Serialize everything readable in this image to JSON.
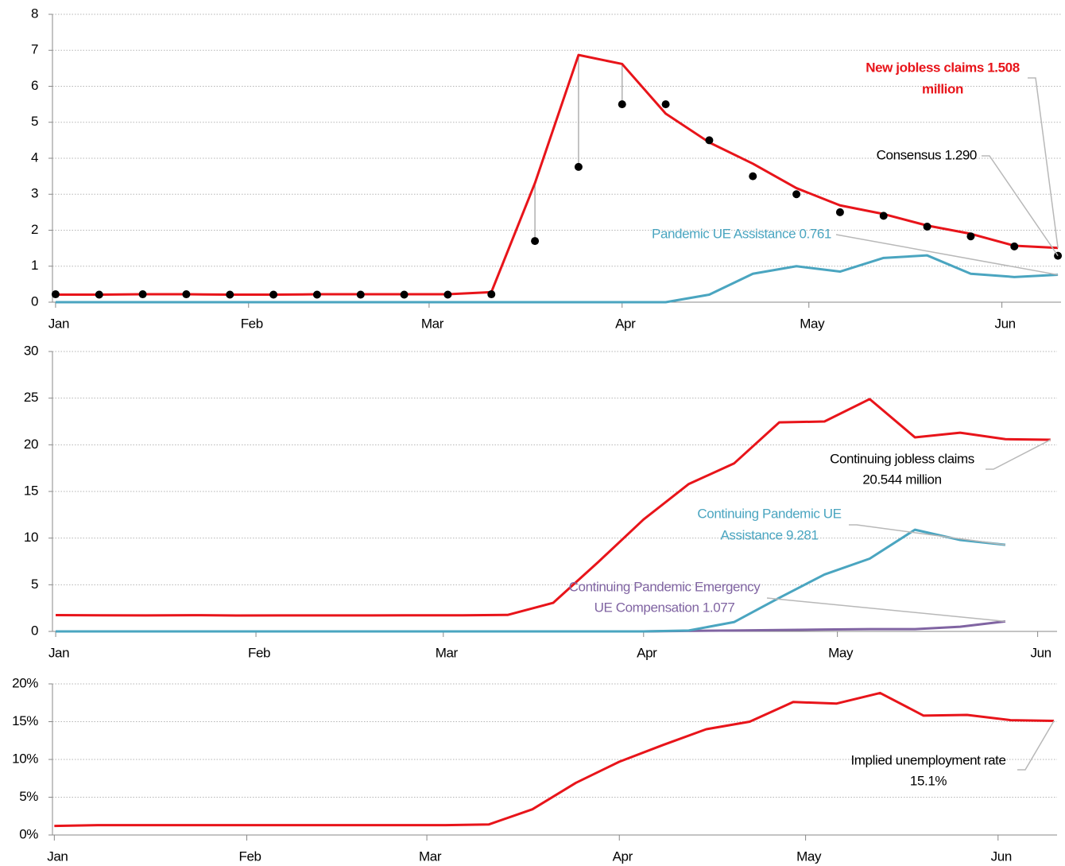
{
  "chart_data": [
    {
      "type": "line",
      "x": [
        0,
        7,
        14,
        21,
        28,
        35,
        42,
        49,
        56,
        63,
        70,
        77,
        84,
        91,
        98,
        105,
        112,
        119,
        126,
        133,
        140,
        147,
        154,
        161
      ],
      "xlim": [
        -0.5,
        161.5
      ],
      "xticks": [
        {
          "value": 0,
          "label": "Jan"
        },
        {
          "value": 31,
          "label": "Feb"
        },
        {
          "value": 60,
          "label": "Mar"
        },
        {
          "value": 91,
          "label": "Apr"
        },
        {
          "value": 121,
          "label": "May"
        },
        {
          "value": 152,
          "label": "Jun"
        }
      ],
      "ylim": [
        0,
        8
      ],
      "yticks": [
        0,
        1,
        2,
        3,
        4,
        5,
        6,
        7,
        8
      ],
      "grid": true,
      "series": [
        {
          "name": "New jobless claims",
          "type": "line",
          "color": "#e8141a",
          "values": [
            0.21,
            0.21,
            0.22,
            0.22,
            0.21,
            0.21,
            0.22,
            0.22,
            0.22,
            0.22,
            0.28,
            3.31,
            6.87,
            6.62,
            5.24,
            4.44,
            3.85,
            3.17,
            2.69,
            2.45,
            2.13,
            1.9,
            1.57,
            1.508
          ]
        },
        {
          "name": "Consensus",
          "type": "scatter",
          "color": "#000000",
          "values": [
            0.22,
            0.21,
            0.22,
            0.22,
            0.21,
            0.21,
            0.21,
            0.21,
            0.21,
            0.21,
            0.22,
            1.7,
            3.76,
            5.5,
            5.5,
            4.5,
            3.5,
            3.0,
            2.5,
            2.4,
            2.1,
            1.83,
            1.55,
            1.29
          ]
        },
        {
          "name": "Pandemic UE Assistance",
          "type": "line",
          "color": "#4aa5c0",
          "values": [
            0,
            0,
            0,
            0,
            0,
            0,
            0,
            0,
            0,
            0,
            0,
            0,
            0,
            0,
            0,
            0.21,
            0.79,
            1.0,
            0.85,
            1.23,
            1.3,
            0.79,
            0.7,
            0.761
          ]
        }
      ],
      "annotations": [
        {
          "lines": [
            "New jobless claims 1.508",
            "million"
          ],
          "color": "#e8141a",
          "bold": true
        },
        {
          "lines": [
            "Consensus 1.290"
          ],
          "color": "#000000"
        },
        {
          "lines": [
            "Pandemic UE Assistance 0.761"
          ],
          "color": "#4aa5c0"
        }
      ]
    },
    {
      "type": "line",
      "x": [
        0,
        7,
        14,
        21,
        28,
        35,
        42,
        49,
        56,
        63,
        70,
        77,
        84,
        91,
        98,
        105,
        112,
        119,
        126,
        133,
        140,
        147,
        154
      ],
      "xlim": [
        -0.5,
        155
      ],
      "xticks": [
        {
          "value": 0,
          "label": "Jan"
        },
        {
          "value": 31,
          "label": "Feb"
        },
        {
          "value": 60,
          "label": "Mar"
        },
        {
          "value": 91,
          "label": "Apr"
        },
        {
          "value": 121,
          "label": "May"
        },
        {
          "value": 152,
          "label": "Jun"
        }
      ],
      "ylim": [
        0,
        30
      ],
      "yticks": [
        0,
        5,
        10,
        15,
        20,
        25,
        30
      ],
      "grid": true,
      "series": [
        {
          "name": "Continuing jobless claims",
          "type": "line",
          "color": "#e8141a",
          "values": [
            1.75,
            1.73,
            1.72,
            1.74,
            1.71,
            1.72,
            1.72,
            1.72,
            1.73,
            1.73,
            1.77,
            3.06,
            7.45,
            12.0,
            15.8,
            18.0,
            22.4,
            22.5,
            24.9,
            20.8,
            21.3,
            20.6,
            20.544
          ]
        },
        {
          "name": "Continuing Pandemic UE Assistance",
          "type": "line",
          "color": "#4aa5c0",
          "values": [
            0,
            0,
            0,
            0,
            0,
            0,
            0,
            0,
            0,
            0,
            0,
            0,
            0,
            0,
            0.1,
            1.0,
            3.6,
            6.1,
            7.8,
            10.9,
            9.8,
            9.281,
            null
          ]
        },
        {
          "name": "Continuing Pandemic Emergency UE Compensation",
          "type": "line",
          "color": "#8064a2",
          "values": [
            0,
            0,
            0,
            0,
            0,
            0,
            0,
            0,
            0,
            0,
            0,
            0,
            0,
            0,
            0.05,
            0.1,
            0.15,
            0.2,
            0.25,
            0.25,
            0.5,
            1.077,
            null
          ]
        }
      ],
      "annotations": [
        {
          "lines": [
            "Continuing jobless claims",
            "20.544 million"
          ],
          "color": "#000000"
        },
        {
          "lines": [
            "Continuing Pandemic UE",
            "Assistance 9.281"
          ],
          "color": "#4aa5c0"
        },
        {
          "lines": [
            "Continuing Pandemic Emergency",
            "UE Compensation 1.077"
          ],
          "color": "#8064a2"
        }
      ]
    },
    {
      "type": "line",
      "x": [
        0,
        7,
        14,
        21,
        28,
        35,
        42,
        49,
        56,
        63,
        70,
        77,
        84,
        91,
        98,
        105,
        112,
        119,
        126,
        133,
        140,
        147,
        154,
        161
      ],
      "xlim": [
        -0.3,
        161.5
      ],
      "xticks": [
        {
          "value": 0,
          "label": "Jan"
        },
        {
          "value": 31,
          "label": "Feb"
        },
        {
          "value": 60,
          "label": "Mar"
        },
        {
          "value": 91,
          "label": "Apr"
        },
        {
          "value": 121,
          "label": "May"
        },
        {
          "value": 152,
          "label": "Jun"
        }
      ],
      "ylim": [
        0,
        20
      ],
      "yticks": [
        {
          "value": 0,
          "label": "0%"
        },
        {
          "value": 5,
          "label": "5%"
        },
        {
          "value": 10,
          "label": "10%"
        },
        {
          "value": 15,
          "label": "15%"
        },
        {
          "value": 20,
          "label": "20%"
        }
      ],
      "grid": true,
      "series": [
        {
          "name": "Implied unemployment rate",
          "type": "line",
          "color": "#e8141a",
          "values": [
            1.2,
            1.3,
            1.3,
            1.3,
            1.3,
            1.3,
            1.3,
            1.3,
            1.3,
            1.3,
            1.4,
            3.4,
            6.9,
            9.7,
            11.9,
            14.0,
            15.0,
            17.6,
            17.4,
            18.8,
            15.8,
            15.9,
            15.2,
            15.1
          ]
        }
      ],
      "annotations": [
        {
          "lines": [
            "Implied unemployment rate",
            "15.1%"
          ],
          "color": "#000000"
        }
      ]
    }
  ]
}
